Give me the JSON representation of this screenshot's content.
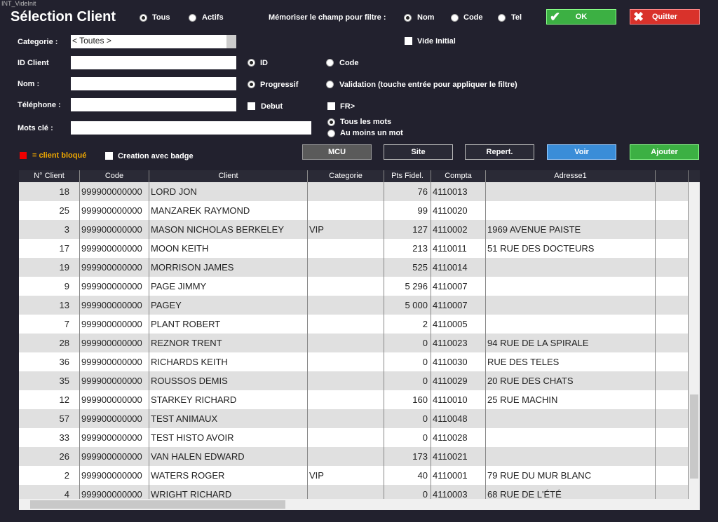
{
  "window_title": "INT_VideInit",
  "title": "Sélection Client",
  "status_filter": [
    "Tous",
    "Actifs"
  ],
  "memorize": {
    "label": "Mémoriser le champ pour filtre :",
    "options": [
      "Nom",
      "Code",
      "Tel"
    ]
  },
  "buttons": {
    "ok": "OK",
    "quit": "Quitter"
  },
  "fields": {
    "category": {
      "label": "Categorie :",
      "value": "< Toutes >"
    },
    "id": "ID Client",
    "name": "Nom :",
    "phone": "Téléphone :",
    "keywords": "Mots clé :"
  },
  "options": {
    "vide_initial": "Vide Initial",
    "search_field": [
      "ID",
      "Code"
    ],
    "mode": [
      "Progressif",
      "Validation (touche entrée pour appliquer le filtre)"
    ],
    "debut": "Debut",
    "fr": "FR>",
    "words": [
      "Tous les mots",
      "Au moins un mot"
    ]
  },
  "legend": "= client bloqué",
  "badge": "Creation avec badge",
  "actions": [
    "MCU",
    "Site",
    "Repert.",
    "Voir",
    "Ajouter"
  ],
  "table": {
    "columns": [
      "N° Client",
      "Code",
      "Client",
      "Categorie",
      "Pts Fidel.",
      "Compta",
      "Adresse1"
    ],
    "rows": [
      [
        "18",
        "999900000000",
        "LORD JON",
        "",
        "76",
        "4110013",
        ""
      ],
      [
        "25",
        "999900000000",
        "MANZAREK RAYMOND",
        "",
        "99",
        "4110020",
        ""
      ],
      [
        "3",
        "999900000000",
        "MASON NICHOLAS BERKELEY",
        "VIP",
        "127",
        "4110002",
        "1969 AVENUE PAISTE"
      ],
      [
        "17",
        "999900000000",
        "MOON KEITH",
        "",
        "213",
        "4110011",
        "51 RUE DES DOCTEURS"
      ],
      [
        "19",
        "999900000000",
        "MORRISON JAMES",
        "",
        "525",
        "4110014",
        ""
      ],
      [
        "9",
        "999900000000",
        "PAGE JIMMY",
        "",
        "5 296",
        "4110007",
        ""
      ],
      [
        "13",
        "999900000000",
        "PAGEY",
        "",
        "5 000",
        "4110007",
        ""
      ],
      [
        "7",
        "999900000000",
        "PLANT  ROBERT",
        "",
        "2",
        "4110005",
        ""
      ],
      [
        "28",
        "999900000000",
        "REZNOR TRENT",
        "",
        "0",
        "4110023",
        "94 RUE DE LA SPIRALE"
      ],
      [
        "36",
        "999900000000",
        "RICHARDS KEITH",
        "",
        "0",
        "4110030",
        "RUE DES TELES"
      ],
      [
        "35",
        "999900000000",
        "ROUSSOS DEMIS",
        "",
        "0",
        "4110029",
        "20 RUE DES CHATS"
      ],
      [
        "12",
        "999900000000",
        "STARKEY RICHARD",
        "",
        "160",
        "4110010",
        "25 RUE MACHIN"
      ],
      [
        "57",
        "999900000000",
        "TEST ANIMAUX",
        "",
        "0",
        "4110048",
        ""
      ],
      [
        "33",
        "999900000000",
        "TEST HISTO AVOIR",
        "",
        "0",
        "4110028",
        ""
      ],
      [
        "26",
        "999900000000",
        "VAN HALEN EDWARD",
        "",
        "173",
        "4110021",
        ""
      ],
      [
        "2",
        "999900000000",
        "WATERS ROGER",
        "VIP",
        "40",
        "4110001",
        "79 RUE DU MUR BLANC"
      ],
      [
        "4",
        "999900000000",
        "WRIGHT RICHARD",
        "",
        "0",
        "4110003",
        "68 RUE DE L'ÉTÉ"
      ]
    ]
  }
}
